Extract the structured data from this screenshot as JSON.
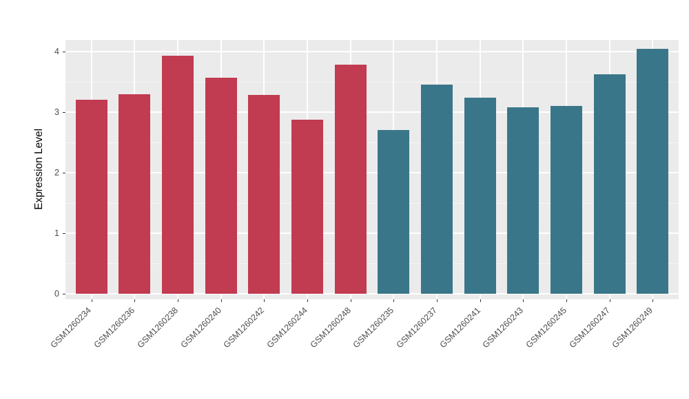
{
  "chart_data": {
    "type": "bar",
    "title": "",
    "xlabel": "",
    "ylabel": "Expression Level",
    "ylim": [
      0,
      4.3
    ],
    "yticks": [
      0,
      1,
      2,
      3,
      4
    ],
    "grid": true,
    "legend": "none",
    "plot_background": "#EBEBEB",
    "gridline_color": "#FFFFFF",
    "categories": [
      "GSM1260234",
      "GSM1260236",
      "GSM1260238",
      "GSM1260240",
      "GSM1260242",
      "GSM1260244",
      "GSM1260248",
      "GSM1260235",
      "GSM1260237",
      "GSM1260241",
      "GSM1260243",
      "GSM1260245",
      "GSM1260247",
      "GSM1260249"
    ],
    "values": [
      3.21,
      3.3,
      3.93,
      3.57,
      3.28,
      2.87,
      3.78,
      2.71,
      3.46,
      3.24,
      3.08,
      3.1,
      3.62,
      4.05
    ],
    "groups": [
      "group1",
      "group1",
      "group1",
      "group1",
      "group1",
      "group1",
      "group1",
      "group2",
      "group2",
      "group2",
      "group2",
      "group2",
      "group2",
      "group2"
    ],
    "group_colors": {
      "group1": "#C13B51",
      "group2": "#3A7689"
    }
  }
}
